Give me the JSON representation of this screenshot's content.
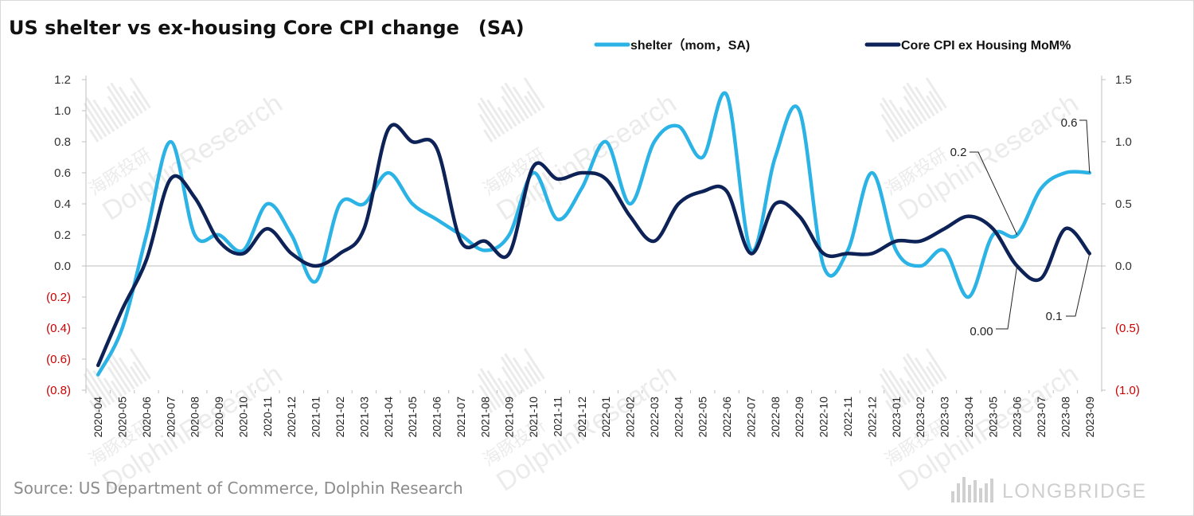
{
  "title": "US shelter vs ex-housing Core CPI change　(SA)",
  "source": "Source: US Department of Commerce,  Dolphin Research",
  "watermark": {
    "cn": "海豚投研",
    "en": "DolphinResearch"
  },
  "brand": "LONGBRIDGE",
  "colors": {
    "shelter": "#2bb3e6",
    "core": "#0d2257",
    "negative_tick": "#cc0000",
    "axis": "#bfbfbf"
  },
  "chart_data": {
    "type": "line",
    "title": "US shelter vs ex-housing Core CPI change　(SA)",
    "categories": [
      "2020-04",
      "2020-05",
      "2020-06",
      "2020-07",
      "2020-08",
      "2020-09",
      "2020-10",
      "2020-11",
      "2020-12",
      "2021-01",
      "2021-02",
      "2021-03",
      "2021-04",
      "2021-05",
      "2021-06",
      "2021-07",
      "2021-08",
      "2021-09",
      "2021-10",
      "2021-11",
      "2021-12",
      "2022-01",
      "2022-02",
      "2022-03",
      "2022-04",
      "2022-05",
      "2022-06",
      "2022-07",
      "2022-08",
      "2022-09",
      "2022-10",
      "2022-11",
      "2022-12",
      "2023-01",
      "2023-02",
      "2023-03",
      "2023-04",
      "2023-05",
      "2023-06",
      "2023-07",
      "2023-08",
      "2023-09"
    ],
    "left_axis": {
      "ylim": [
        -0.8,
        1.2
      ],
      "ticks": [
        "1.2",
        "1.0",
        "0.8",
        "0.6",
        "0.4",
        "0.2",
        "0.0",
        "(0.2)",
        "(0.4)",
        "(0.6)",
        "(0.8)"
      ]
    },
    "right_axis": {
      "ylim": [
        -1.0,
        1.5
      ],
      "ticks": [
        "1.5",
        "1.0",
        "0.5",
        "0.0",
        "(0.5)",
        "(1.0)"
      ]
    },
    "legend_position": "top-right",
    "series": [
      {
        "name": "shelter（mom，SA)",
        "axis": "left",
        "values": [
          -0.7,
          -0.4,
          0.2,
          0.8,
          0.2,
          0.2,
          0.1,
          0.4,
          0.2,
          -0.1,
          0.4,
          0.4,
          0.6,
          0.4,
          0.3,
          0.2,
          0.1,
          0.2,
          0.6,
          0.3,
          0.5,
          0.8,
          0.4,
          0.8,
          0.9,
          0.7,
          1.1,
          0.1,
          0.7,
          1.0,
          0.0,
          0.1,
          0.6,
          0.1,
          0.0,
          0.1,
          -0.2,
          0.2,
          0.2,
          0.5,
          0.6,
          0.6
        ]
      },
      {
        "name": "Core CPI ex Housing MoM%",
        "axis": "right",
        "values": [
          -0.8,
          -0.35,
          0.05,
          0.7,
          0.55,
          0.2,
          0.1,
          0.3,
          0.1,
          0.0,
          0.1,
          0.3,
          1.1,
          1.0,
          0.95,
          0.2,
          0.2,
          0.1,
          0.8,
          0.7,
          0.75,
          0.7,
          0.4,
          0.2,
          0.5,
          0.6,
          0.6,
          0.1,
          0.5,
          0.4,
          0.1,
          0.1,
          0.1,
          0.2,
          0.2,
          0.3,
          0.4,
          0.3,
          0.0,
          -0.1,
          0.3,
          0.1
        ]
      }
    ],
    "annotations": [
      {
        "text": "0.6",
        "series": 0,
        "index": 41
      },
      {
        "text": "0.2",
        "series": 0,
        "index": 38
      },
      {
        "text": "0.00",
        "series": 1,
        "index": 38
      },
      {
        "text": "0.1",
        "series": 1,
        "index": 41
      }
    ]
  }
}
